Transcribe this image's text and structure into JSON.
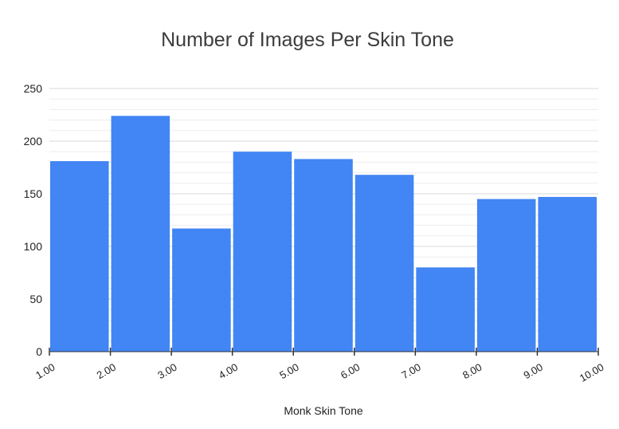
{
  "chart_data": {
    "type": "bar",
    "title": "Number of Images Per Skin Tone",
    "xlabel": "Monk Skin Tone",
    "ylabel": "",
    "bin_edges": [
      "1.00",
      "2.00",
      "3.00",
      "4.00",
      "5.00",
      "6.00",
      "7.00",
      "8.00",
      "9.00",
      "10.00"
    ],
    "values": [
      181,
      224,
      117,
      190,
      183,
      168,
      80,
      145,
      147
    ],
    "ylim": [
      0,
      250
    ],
    "yticks": [
      "0",
      "50",
      "100",
      "150",
      "200",
      "250"
    ],
    "grid": true,
    "legend": "none",
    "bar_color": "#4285f4"
  }
}
